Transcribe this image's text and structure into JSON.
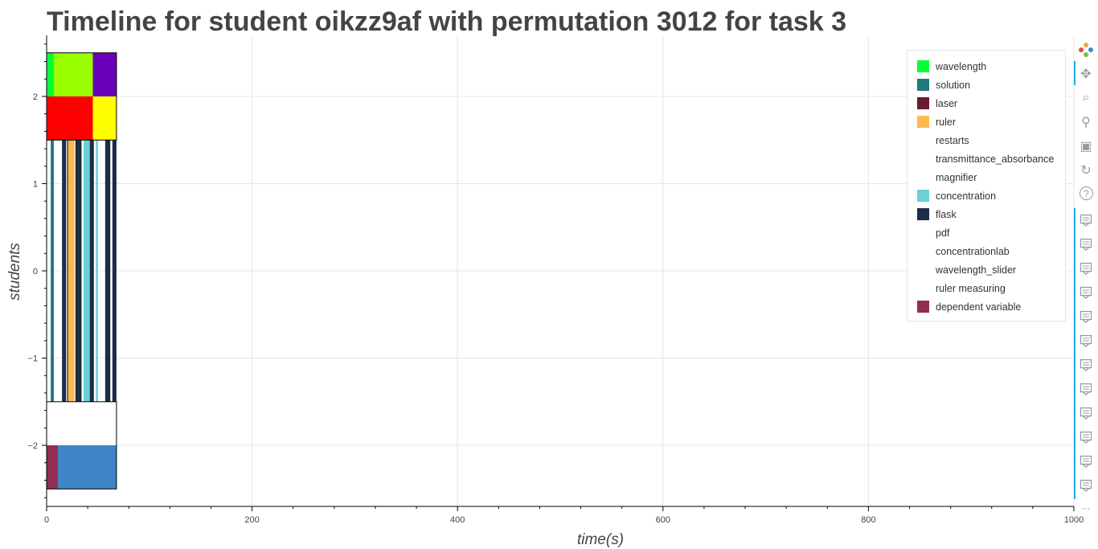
{
  "chart_data": {
    "type": "timeline",
    "title": "Timeline for student oikzz9af with permutation 3012 for task 3",
    "xlabel": "time(s)",
    "ylabel": "students",
    "xlim": [
      0,
      1000
    ],
    "ylim": [
      -2.7,
      2.7
    ],
    "x_ticks": [
      0,
      200,
      400,
      600,
      800,
      1000
    ],
    "y_ticks": [
      2,
      1,
      0,
      -1,
      -2
    ],
    "y_tick_labels": [
      "2",
      "1",
      "0",
      "−1",
      "−2"
    ],
    "grid": true,
    "legend_position": "top-right",
    "legend": [
      {
        "name": "wavelength",
        "color": "#00ff33"
      },
      {
        "name": "solution",
        "color": "#1f7a78"
      },
      {
        "name": "laser",
        "color": "#6b1a30"
      },
      {
        "name": "ruler",
        "color": "#ffb84d"
      },
      {
        "name": "restarts",
        "color": "none"
      },
      {
        "name": "transmittance_absorbance",
        "color": "none"
      },
      {
        "name": "magnifier",
        "color": "none"
      },
      {
        "name": "concentration",
        "color": "#6bd1d6"
      },
      {
        "name": "flask",
        "color": "#1a2e45"
      },
      {
        "name": "pdf",
        "color": "none"
      },
      {
        "name": "concentrationlab",
        "color": "none"
      },
      {
        "name": "wavelength_slider",
        "color": "none"
      },
      {
        "name": "ruler measuring",
        "color": "none"
      },
      {
        "name": "dependent variable",
        "color": "#922d53"
      }
    ],
    "rows": [
      {
        "y": [
          2.0,
          2.5
        ],
        "segments": [
          {
            "x0": 0,
            "x1": 7,
            "color": "#00ff33"
          },
          {
            "x0": 7,
            "x1": 45,
            "color": "#99ff00"
          },
          {
            "x0": 45,
            "x1": 68,
            "color": "#6a00b8"
          }
        ]
      },
      {
        "y": [
          1.5,
          2.0
        ],
        "segments": [
          {
            "x0": 0,
            "x1": 45,
            "color": "#ff0000"
          },
          {
            "x0": 45,
            "x1": 68,
            "color": "#ffff00"
          }
        ]
      },
      {
        "y": [
          -1.5,
          1.5
        ],
        "segments": [
          {
            "x0": 4,
            "x1": 7,
            "color": "#1f7a78"
          },
          {
            "x0": 15,
            "x1": 19,
            "color": "#1a2e45"
          },
          {
            "x0": 20,
            "x1": 22,
            "color": "#1a2e45"
          },
          {
            "x0": 21,
            "x1": 27,
            "color": "#ffb84d"
          },
          {
            "x0": 28,
            "x1": 34,
            "color": "#1a2e45"
          },
          {
            "x0": 36,
            "x1": 42,
            "color": "#6bd1d6"
          },
          {
            "x0": 42,
            "x1": 46,
            "color": "#1a2e45"
          },
          {
            "x0": 48,
            "x1": 50,
            "color": "#6bd1d6"
          },
          {
            "x0": 57,
            "x1": 62,
            "color": "#1a2e45"
          },
          {
            "x0": 64,
            "x1": 68,
            "color": "#1a2e45"
          }
        ]
      },
      {
        "y": [
          -2.5,
          -2.0
        ],
        "segments": [
          {
            "x0": 0,
            "x1": 11,
            "color": "#922d53"
          },
          {
            "x0": 11,
            "x1": 68,
            "color": "#3d85c6"
          }
        ]
      }
    ],
    "outline_boxes": [
      {
        "x0": 0,
        "x1": 68,
        "y0": 1.5,
        "y1": 2.5
      },
      {
        "x0": 0,
        "x1": 68,
        "y0": -2.5,
        "y1": -1.5
      }
    ]
  },
  "toolbar": {
    "icons": [
      "bokeh-logo-icon",
      "pan-icon",
      "box-zoom-icon",
      "wheel-zoom-icon",
      "save-icon",
      "reset-icon",
      "help-icon",
      "hover-icon"
    ]
  }
}
